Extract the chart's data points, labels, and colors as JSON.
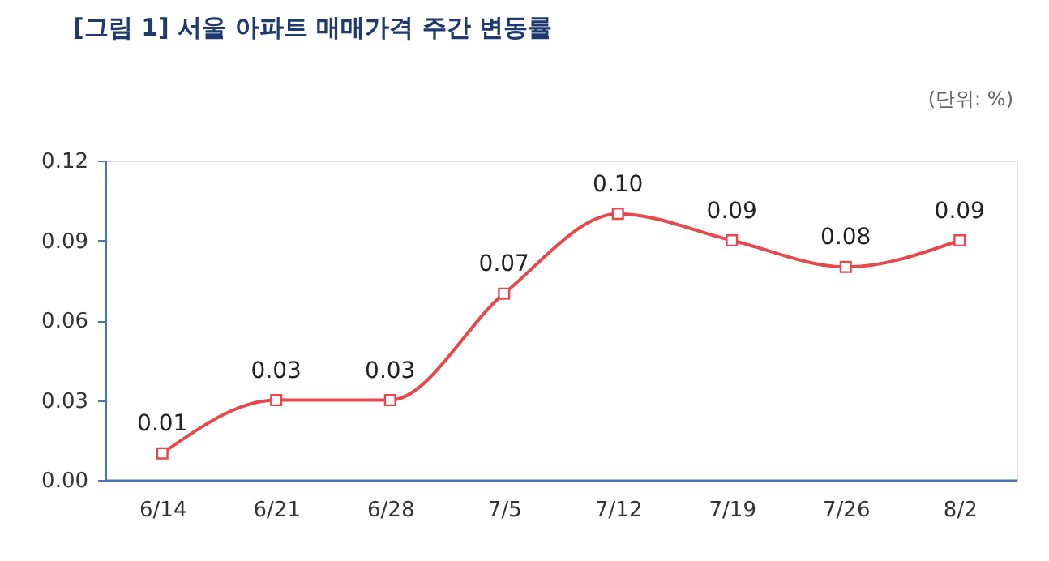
{
  "chart_data": {
    "type": "line",
    "title": "[그림 1] 서울 아파트 매매가격 주간 변동률",
    "annotations": [
      "(단위: %)"
    ],
    "categories": [
      "6/14",
      "6/21",
      "6/28",
      "7/5",
      "7/12",
      "7/19",
      "7/26",
      "8/2"
    ],
    "series": [
      {
        "color": "#e8474c",
        "values": [
          0.01,
          0.03,
          0.03,
          0.07,
          0.1,
          0.09,
          0.08,
          0.09
        ],
        "value_labels": [
          "0.01",
          "0.03",
          "0.03",
          "0.07",
          "0.10",
          "0.09",
          "0.08",
          "0.09"
        ]
      }
    ],
    "ylim": [
      0,
      0.12
    ],
    "yticks": [
      {
        "value": 0,
        "label": "0.00"
      },
      {
        "value": 0.03,
        "label": "0.03"
      },
      {
        "value": 0.06,
        "label": "0.06"
      },
      {
        "value": 0.09,
        "label": "0.09"
      },
      {
        "value": 0.12,
        "label": "0.12"
      }
    ],
    "grid": false,
    "marker": "square",
    "line_style": "solid"
  }
}
